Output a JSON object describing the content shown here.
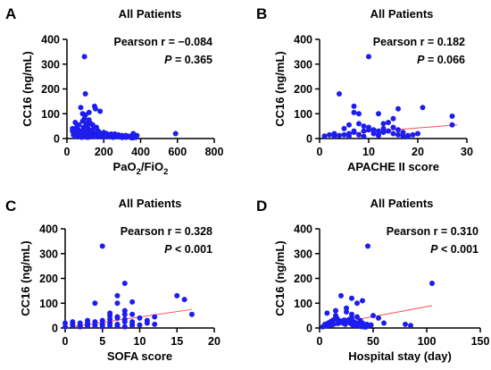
{
  "chart_data": [
    {
      "type": "scatter",
      "panel_label": "A",
      "title": "All Patients",
      "xlabel": "PaO",
      "xlabel_sub": "2",
      "xlabel_tail": "/FiO",
      "xlabel_sub2": "2",
      "ylabel": "CC16 (ng/mL)",
      "xlim": [
        0,
        800
      ],
      "ylim": [
        0,
        400
      ],
      "xticks": [
        "0",
        "200",
        "400",
        "600",
        "800"
      ],
      "yticks": [
        "0",
        "100",
        "200",
        "300",
        "400"
      ],
      "stat_r": "Pearson r = −0.084",
      "stat_p_label": "P",
      "stat_p_value": " = 0.365",
      "trendline": {
        "x": [
          25,
          380
        ],
        "y": [
          32,
          10
        ]
      },
      "x": [
        95,
        150,
        100,
        75,
        85,
        120,
        155,
        180,
        205,
        230,
        260,
        300,
        330,
        360,
        590,
        30,
        40,
        50,
        60,
        70,
        80,
        90,
        105,
        110,
        115,
        125,
        130,
        135,
        140,
        145,
        160,
        165,
        170,
        175,
        185,
        190,
        195,
        200,
        210,
        215,
        220,
        225,
        240,
        250,
        270,
        280,
        290,
        310,
        320,
        340,
        350,
        370,
        380,
        45,
        55,
        65,
        85,
        95,
        100,
        120,
        140,
        160,
        100,
        130,
        90,
        60,
        110,
        150,
        35,
        75,
        125,
        175,
        225,
        275,
        325,
        375,
        45,
        70,
        80,
        95,
        105,
        115,
        140,
        170,
        200,
        250,
        300,
        350,
        30,
        50,
        60,
        70,
        90,
        110,
        130,
        150,
        180,
        210,
        240,
        280,
        320,
        360
      ],
      "y": [
        330,
        130,
        180,
        125,
        100,
        105,
        120,
        110,
        20,
        15,
        18,
        12,
        10,
        20,
        20,
        30,
        25,
        40,
        35,
        20,
        30,
        45,
        60,
        50,
        40,
        30,
        25,
        15,
        35,
        20,
        10,
        25,
        30,
        15,
        20,
        10,
        15,
        25,
        10,
        20,
        15,
        12,
        18,
        10,
        12,
        15,
        8,
        10,
        12,
        8,
        10,
        5,
        12,
        65,
        50,
        55,
        70,
        80,
        35,
        75,
        55,
        45,
        95,
        60,
        25,
        12,
        10,
        8,
        15,
        18,
        15,
        12,
        10,
        8,
        6,
        5,
        8,
        10,
        5,
        8,
        6,
        5,
        10,
        7,
        6,
        5,
        4,
        3,
        40,
        35,
        30,
        28,
        22,
        20,
        18,
        14,
        12,
        9,
        8,
        7,
        5,
        3
      ]
    },
    {
      "type": "scatter",
      "panel_label": "B",
      "title": "All Patients",
      "xlabel": "APACHE II score",
      "ylabel": "CC16 (ng/mL)",
      "xlim": [
        0,
        30
      ],
      "ylim": [
        0,
        400
      ],
      "xticks": [
        "0",
        "10",
        "20",
        "30"
      ],
      "yticks": [
        "0",
        "100",
        "200",
        "300",
        "400"
      ],
      "stat_r": "Pearson r = 0.182",
      "stat_p_label": "P",
      "stat_p_value": " = 0.066",
      "trendline": {
        "x": [
          2,
          28
        ],
        "y": [
          15,
          55
        ]
      },
      "x": [
        10,
        4,
        7,
        16,
        7,
        21,
        12,
        8,
        27,
        27,
        15,
        13,
        1,
        2,
        3,
        4,
        5,
        6,
        7,
        8,
        9,
        10,
        11,
        12,
        13,
        14,
        15,
        16,
        17,
        18,
        19,
        20,
        5,
        6,
        8,
        9,
        10,
        11,
        12,
        13,
        14,
        15,
        16,
        17,
        6,
        9,
        12,
        18,
        3,
        7
      ],
      "y": [
        330,
        180,
        130,
        120,
        105,
        125,
        100,
        100,
        90,
        55,
        80,
        60,
        10,
        15,
        10,
        12,
        15,
        20,
        25,
        15,
        30,
        35,
        20,
        15,
        25,
        30,
        20,
        15,
        10,
        12,
        15,
        20,
        40,
        55,
        60,
        50,
        45,
        35,
        30,
        40,
        65,
        45,
        35,
        25,
        10,
        8,
        12,
        8,
        20,
        30
      ]
    },
    {
      "type": "scatter",
      "panel_label": "C",
      "title": "All Patients",
      "xlabel": "SOFA score",
      "ylabel": "CC16 (ng/mL)",
      "xlim": [
        0,
        20
      ],
      "ylim": [
        0,
        400
      ],
      "xticks": [
        "0",
        "5",
        "10",
        "15",
        "20"
      ],
      "yticks": [
        "0",
        "100",
        "200",
        "300",
        "400"
      ],
      "stat_r": "Pearson r = 0.328",
      "stat_p_label": "P",
      "stat_p_value": " < 0.001",
      "trendline": {
        "x": [
          1,
          17
        ],
        "y": [
          5,
          75
        ]
      },
      "x": [
        5,
        8,
        7,
        15,
        16,
        17,
        4,
        7,
        9,
        8,
        6,
        12,
        0,
        1,
        2,
        3,
        4,
        5,
        6,
        7,
        8,
        9,
        10,
        11,
        12,
        2,
        3,
        4,
        5,
        6,
        7,
        8,
        9,
        10,
        1,
        3,
        5,
        7,
        9,
        11,
        2,
        4,
        6,
        8,
        0,
        1,
        3,
        5,
        6,
        7,
        8,
        9
      ],
      "y": [
        330,
        180,
        130,
        130,
        115,
        55,
        100,
        100,
        105,
        70,
        50,
        45,
        20,
        15,
        10,
        20,
        25,
        30,
        20,
        15,
        35,
        25,
        40,
        20,
        15,
        5,
        8,
        12,
        15,
        10,
        8,
        5,
        10,
        12,
        25,
        30,
        15,
        45,
        55,
        30,
        20,
        10,
        60,
        55,
        5,
        10,
        15,
        5,
        35,
        40,
        25,
        15
      ]
    },
    {
      "type": "scatter",
      "panel_label": "D",
      "title": "All Patients",
      "xlabel": "Hospital stay (day)",
      "ylabel": "CC16 (ng/mL)",
      "xlim": [
        0,
        150
      ],
      "ylim": [
        0,
        400
      ],
      "xticks": [
        "0",
        "50",
        "100",
        "150"
      ],
      "yticks": [
        "0",
        "100",
        "200",
        "300",
        "400"
      ],
      "stat_r": "Pearson r = 0.310",
      "stat_p_label": "P",
      "stat_p_value": " < 0.001",
      "trendline": {
        "x": [
          3,
          105
        ],
        "y": [
          8,
          90
        ]
      },
      "x": [
        45,
        105,
        20,
        30,
        35,
        40,
        25,
        15,
        50,
        55,
        80,
        85,
        60,
        5,
        8,
        10,
        12,
        14,
        16,
        18,
        20,
        22,
        24,
        26,
        28,
        30,
        32,
        34,
        36,
        38,
        40,
        42,
        44,
        46,
        48,
        3,
        6,
        9,
        11,
        13,
        17,
        19,
        21,
        23,
        27,
        29,
        31,
        33,
        37,
        39,
        41,
        43,
        7,
        25,
        30,
        35,
        15,
        45
      ],
      "y": [
        330,
        180,
        130,
        120,
        100,
        110,
        80,
        70,
        50,
        40,
        15,
        10,
        20,
        15,
        20,
        25,
        30,
        35,
        40,
        30,
        25,
        20,
        15,
        30,
        35,
        40,
        25,
        20,
        15,
        30,
        20,
        10,
        15,
        10,
        12,
        5,
        8,
        10,
        12,
        15,
        18,
        22,
        28,
        32,
        25,
        18,
        12,
        10,
        8,
        6,
        5,
        4,
        60,
        65,
        55,
        45,
        50,
        8
      ]
    }
  ]
}
